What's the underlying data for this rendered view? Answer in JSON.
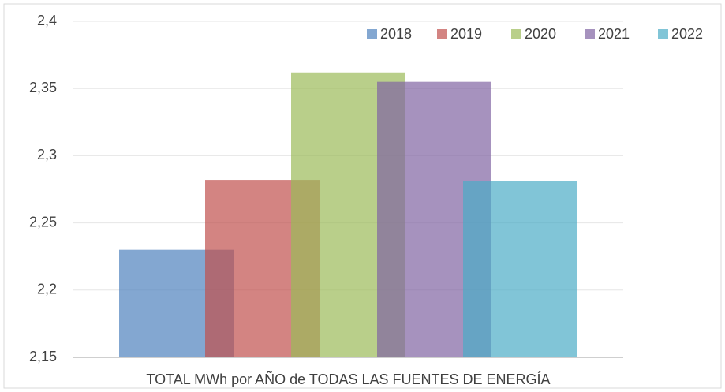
{
  "chart_data": {
    "type": "bar",
    "categories": [
      "TOTAL MWh por AÑO de TODAS LAS FUENTES DE ENERGÍA"
    ],
    "series": [
      {
        "name": "2018",
        "color": "#4f81bd",
        "values": [
          2.23
        ]
      },
      {
        "name": "2019",
        "color": "#c0504d",
        "values": [
          2.282
        ]
      },
      {
        "name": "2020",
        "color": "#9bbb59",
        "values": [
          2.362
        ]
      },
      {
        "name": "2021",
        "color": "#8064a2",
        "values": [
          2.355
        ]
      },
      {
        "name": "2022",
        "color": "#4bacc6",
        "values": [
          2.281
        ]
      }
    ],
    "ylim": [
      2.15,
      2.4
    ],
    "yticks": [
      {
        "value": 2.15,
        "label": "2,15"
      },
      {
        "value": 2.2,
        "label": "2,2"
      },
      {
        "value": 2.25,
        "label": "2,25"
      },
      {
        "value": 2.3,
        "label": "2,3"
      },
      {
        "value": 2.35,
        "label": "2,35"
      },
      {
        "value": 2.4,
        "label": "2,4"
      }
    ],
    "grid": true,
    "legend": "top-right"
  }
}
